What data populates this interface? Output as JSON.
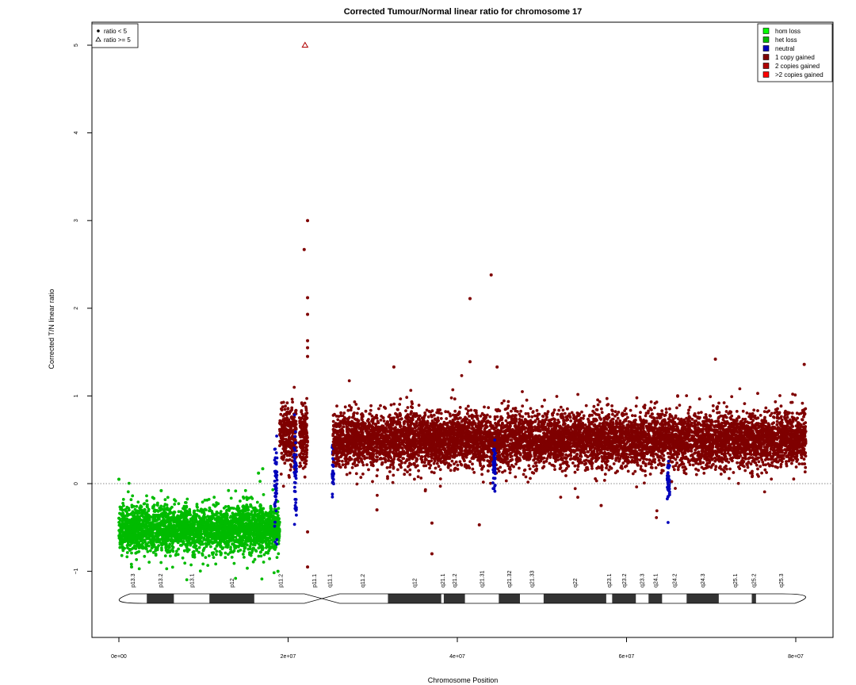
{
  "chart_data": {
    "type": "scatter",
    "title": "Corrected Tumour/Normal linear ratio for chromosome  17",
    "xlabel": "Chromosome Position",
    "ylabel": "Corrected T/N linear ratio",
    "xlim": [
      0,
      84000000
    ],
    "ylim": [
      -1.75,
      5.25
    ],
    "x_ticks": [
      0,
      20000000,
      40000000,
      60000000,
      80000000
    ],
    "x_tick_labels": [
      "0e+00",
      "2e+07",
      "4e+07",
      "6e+07",
      "8e+07"
    ],
    "y_ticks": [
      -1,
      0,
      1,
      2,
      3,
      4,
      5
    ],
    "y_tick_labels": [
      "−1",
      "0",
      "1",
      "2",
      "3",
      "4",
      "5"
    ],
    "reference_line_y": 0,
    "shape_legend": {
      "position": "top-left",
      "entries": [
        {
          "label": "ratio < 5",
          "symbol": "dot"
        },
        {
          "label": "ratio >= 5",
          "symbol": "triangle"
        }
      ]
    },
    "state_legend": {
      "position": "top-right",
      "entries": [
        {
          "label": "hom loss",
          "color": "#00ff00"
        },
        {
          "label": "het loss",
          "color": "#00bb00"
        },
        {
          "label": "neutral",
          "color": "#0000bb"
        },
        {
          "label": "1 copy gained",
          "color": "#7f0000"
        },
        {
          "label": "2 copies gained",
          "color": "#b00000"
        },
        {
          "label": ">2 copies gained",
          "color": "#ff0000"
        }
      ]
    },
    "segments": [
      {
        "state": "het loss",
        "x_start": 0,
        "x_end": 19000000,
        "mean": -0.52,
        "spread": 0.13,
        "color": "#00bb00"
      },
      {
        "state": "neutral",
        "x_start": 18400000,
        "x_end": 18700000,
        "mean": 0.0,
        "spread": 0.25,
        "color": "#0000bb"
      },
      {
        "state": "1 copy gained",
        "x_start": 19000000,
        "x_end": 21000000,
        "mean": 0.55,
        "spread": 0.17,
        "color": "#7f0000"
      },
      {
        "state": "neutral",
        "x_start": 20700000,
        "x_end": 21000000,
        "mean": 0.1,
        "spread": 0.25,
        "color": "#0000bb"
      },
      {
        "state": "1 copy gained",
        "x_start": 21300000,
        "x_end": 22300000,
        "mean": 0.55,
        "spread": 0.2,
        "color": "#7f0000"
      },
      {
        "state": "neutral",
        "x_start": 25200000,
        "x_end": 25400000,
        "mean": 0.15,
        "spread": 0.15,
        "color": "#0000bb"
      },
      {
        "state": "1 copy gained",
        "x_start": 25300000,
        "x_end": 81200000,
        "mean": 0.5,
        "spread": 0.15,
        "color": "#7f0000"
      },
      {
        "state": "neutral",
        "x_start": 44200000,
        "x_end": 44500000,
        "mean": 0.2,
        "spread": 0.15,
        "color": "#0000bb"
      },
      {
        "state": "neutral",
        "x_start": 64800000,
        "x_end": 65100000,
        "mean": 0.0,
        "spread": 0.12,
        "color": "#0000bb"
      }
    ],
    "outliers": [
      {
        "x": 22000000,
        "y": 5.0,
        "symbol": "triangle",
        "color": "#b00000"
      },
      {
        "x": 22300000,
        "y": 3.0,
        "color": "#7f0000"
      },
      {
        "x": 21900000,
        "y": 2.67,
        "color": "#7f0000"
      },
      {
        "x": 22300000,
        "y": 2.12,
        "color": "#7f0000"
      },
      {
        "x": 22300000,
        "y": 1.93,
        "color": "#7f0000"
      },
      {
        "x": 22300000,
        "y": 1.63,
        "color": "#7f0000"
      },
      {
        "x": 22300000,
        "y": 1.55,
        "color": "#7f0000"
      },
      {
        "x": 22300000,
        "y": 1.45,
        "color": "#7f0000"
      },
      {
        "x": 22300000,
        "y": -0.55,
        "color": "#7f0000"
      },
      {
        "x": 22300000,
        "y": -0.95,
        "color": "#7f0000"
      },
      {
        "x": 44000000,
        "y": 2.38,
        "color": "#7f0000"
      },
      {
        "x": 41500000,
        "y": 2.11,
        "color": "#7f0000"
      },
      {
        "x": 41500000,
        "y": 1.39,
        "color": "#7f0000"
      },
      {
        "x": 70500000,
        "y": 1.42,
        "color": "#7f0000"
      },
      {
        "x": 81000000,
        "y": 1.36,
        "color": "#7f0000"
      },
      {
        "x": 32500000,
        "y": 1.33,
        "color": "#7f0000"
      },
      {
        "x": 44700000,
        "y": 1.33,
        "color": "#7f0000"
      },
      {
        "x": 37000000,
        "y": -0.45,
        "color": "#7f0000"
      },
      {
        "x": 37000000,
        "y": -0.8,
        "color": "#7f0000"
      },
      {
        "x": 42600000,
        "y": -0.47,
        "color": "#7f0000"
      },
      {
        "x": 30500000,
        "y": -0.3,
        "color": "#7f0000"
      },
      {
        "x": 57000000,
        "y": -0.25,
        "color": "#7f0000"
      },
      {
        "x": 0,
        "y": 0.05,
        "color": "#00bb00"
      },
      {
        "x": 1500000,
        "y": -0.95,
        "color": "#00bb00"
      },
      {
        "x": 5000000,
        "y": -0.08,
        "color": "#00bb00"
      },
      {
        "x": 16500000,
        "y": 0.12,
        "color": "#00bb00"
      },
      {
        "x": 17000000,
        "y": 0.17,
        "color": "#00bb00"
      },
      {
        "x": 18800000,
        "y": -1.0,
        "color": "#00bb00"
      }
    ],
    "cytobands": [
      {
        "label": "p13.3",
        "start": 0,
        "end": 3300000,
        "stain": "gneg",
        "show_label": true
      },
      {
        "label": "p13.2",
        "start": 3300000,
        "end": 6500000,
        "stain": "gpos",
        "show_label": true
      },
      {
        "label": "p13.1",
        "start": 6500000,
        "end": 10700000,
        "stain": "gneg",
        "show_label": true
      },
      {
        "label": "p12",
        "start": 10700000,
        "end": 16000000,
        "stain": "gpos",
        "show_label": true
      },
      {
        "label": "p11.2",
        "start": 16000000,
        "end": 22200000,
        "stain": "gneg",
        "show_label": true
      },
      {
        "label": "p11.1",
        "start": 22200000,
        "end": 24000000,
        "stain": "acen",
        "show_label": true
      },
      {
        "label": "q11.1",
        "start": 24000000,
        "end": 25800000,
        "stain": "acen",
        "show_label": true
      },
      {
        "label": "q11.2",
        "start": 25800000,
        "end": 31800000,
        "stain": "gneg",
        "show_label": true
      },
      {
        "label": "q12",
        "start": 31800000,
        "end": 38100000,
        "stain": "gpos",
        "show_label": true
      },
      {
        "label": "q21.1",
        "start": 38100000,
        "end": 38400000,
        "stain": "gneg",
        "show_label": true
      },
      {
        "label": "q21.2",
        "start": 38400000,
        "end": 40900000,
        "stain": "gpos",
        "show_label": true
      },
      {
        "label": "q21.31",
        "start": 40900000,
        "end": 44900000,
        "stain": "gneg",
        "show_label": true
      },
      {
        "label": "q21.32",
        "start": 44900000,
        "end": 47400000,
        "stain": "gpos",
        "show_label": true
      },
      {
        "label": "q21.33",
        "start": 47400000,
        "end": 50200000,
        "stain": "gneg",
        "show_label": true
      },
      {
        "label": "q22",
        "start": 50200000,
        "end": 57600000,
        "stain": "gpos",
        "show_label": true
      },
      {
        "label": "q23.1",
        "start": 57600000,
        "end": 58300000,
        "stain": "gneg",
        "show_label": true
      },
      {
        "label": "q23.2",
        "start": 58300000,
        "end": 61100000,
        "stain": "gpos",
        "show_label": true
      },
      {
        "label": "q23.3",
        "start": 61100000,
        "end": 62600000,
        "stain": "gneg",
        "show_label": true
      },
      {
        "label": "q24.1",
        "start": 62600000,
        "end": 64200000,
        "stain": "gpos",
        "show_label": true
      },
      {
        "label": "q24.2",
        "start": 64200000,
        "end": 67100000,
        "stain": "gneg",
        "show_label": true
      },
      {
        "label": "q24.3",
        "start": 67100000,
        "end": 70900000,
        "stain": "gpos",
        "show_label": true
      },
      {
        "label": "q25.1",
        "start": 70900000,
        "end": 74800000,
        "stain": "gneg",
        "show_label": true
      },
      {
        "label": "q25.2",
        "start": 74800000,
        "end": 75300000,
        "stain": "gpos",
        "show_label": true
      },
      {
        "label": "q25.3",
        "start": 75300000,
        "end": 81200000,
        "stain": "gneg",
        "show_label": true
      }
    ]
  }
}
